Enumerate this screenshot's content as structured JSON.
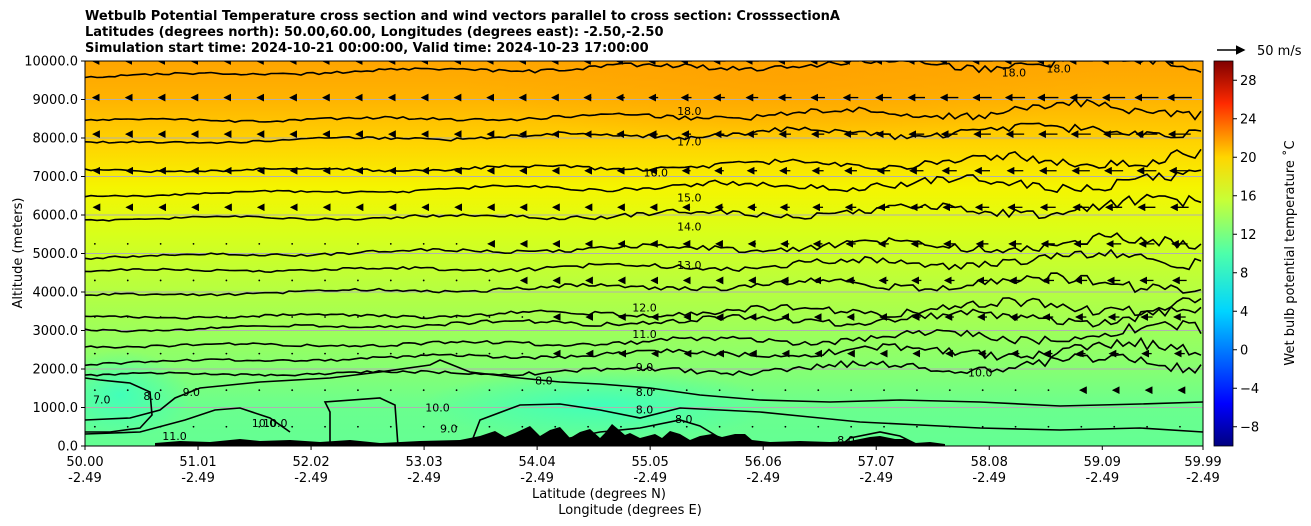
{
  "title_lines": [
    "Wetbulb Potential Temperature cross section and wind vectors parallel to cross section: CrosssectionA",
    "Latitudes (degrees north): 50.00,60.00, Longitudes (degrees east): -2.50,-2.50",
    "Simulation start time: 2024-10-21 00:00:00, Valid time: 2024-10-23 17:00:00"
  ],
  "chart_data": {
    "type": "heatmap",
    "ylabel": "Altitude (meters)",
    "xlabel_line1": "Latitude (degrees N)",
    "xlabel_line2": "Longitude (degrees E)",
    "ylim": [
      0,
      10000
    ],
    "xlim": [
      50.0,
      59.99
    ],
    "y_ticks": [
      {
        "value": 0,
        "label": "0.0"
      },
      {
        "value": 1000,
        "label": "1000.0"
      },
      {
        "value": 2000,
        "label": "2000.0"
      },
      {
        "value": 3000,
        "label": "3000.0"
      },
      {
        "value": 4000,
        "label": "4000.0"
      },
      {
        "value": 5000,
        "label": "5000.0"
      },
      {
        "value": 6000,
        "label": "6000.0"
      },
      {
        "value": 7000,
        "label": "7000.0"
      },
      {
        "value": 8000,
        "label": "8000.0"
      },
      {
        "value": 9000,
        "label": "9000.0"
      },
      {
        "value": 10000,
        "label": "10000.0"
      }
    ],
    "x_ticks": [
      {
        "lat": 50.0,
        "lat_label": "50.00",
        "lon_label": "-2.49"
      },
      {
        "lat": 51.01,
        "lat_label": "51.01",
        "lon_label": "-2.49"
      },
      {
        "lat": 52.02,
        "lat_label": "52.02",
        "lon_label": "-2.49"
      },
      {
        "lat": 53.03,
        "lat_label": "53.03",
        "lon_label": "-2.49"
      },
      {
        "lat": 54.04,
        "lat_label": "54.04",
        "lon_label": "-2.49"
      },
      {
        "lat": 55.05,
        "lat_label": "55.05",
        "lon_label": "-2.49"
      },
      {
        "lat": 56.06,
        "lat_label": "56.06",
        "lon_label": "-2.49"
      },
      {
        "lat": 57.07,
        "lat_label": "57.07",
        "lon_label": "-2.49"
      },
      {
        "lat": 58.08,
        "lat_label": "58.08",
        "lon_label": "-2.49"
      },
      {
        "lat": 59.09,
        "lat_label": "59.09",
        "lon_label": "-2.49"
      },
      {
        "lat": 59.99,
        "lat_label": "59.99",
        "lon_label": "-2.49"
      }
    ],
    "grid": "horizontal",
    "colormap": "jet",
    "colorbar": {
      "label": "Wet bulb potential temperature ˚C",
      "range": [
        -10,
        30
      ],
      "ticks": [
        -8,
        -4,
        0,
        4,
        8,
        12,
        16,
        20,
        24,
        28
      ],
      "tick_labels": [
        "−8",
        "−4",
        "0",
        "4",
        "8",
        "12",
        "16",
        "20",
        "24",
        "28"
      ]
    },
    "quiver_key": {
      "label": "50 m/s",
      "value": 50
    },
    "contour_labels": [
      {
        "text": "18.0",
        "lat": 55.4,
        "alt": 8600
      },
      {
        "text": "17.0",
        "lat": 55.4,
        "alt": 7800
      },
      {
        "text": "16.0",
        "lat": 55.1,
        "alt": 7000
      },
      {
        "text": "15.0",
        "lat": 55.4,
        "alt": 6350
      },
      {
        "text": "14.0",
        "lat": 55.4,
        "alt": 5600
      },
      {
        "text": "13.0",
        "lat": 55.4,
        "alt": 4600
      },
      {
        "text": "12.0",
        "lat": 55.0,
        "alt": 3500
      },
      {
        "text": "11.0",
        "lat": 55.0,
        "alt": 2800
      },
      {
        "text": "10.0",
        "lat": 58.0,
        "alt": 1800
      },
      {
        "text": "9.0",
        "lat": 55.0,
        "alt": 1950
      },
      {
        "text": "9.0",
        "lat": 50.95,
        "alt": 1300
      },
      {
        "text": "9.0",
        "lat": 53.25,
        "alt": 350
      },
      {
        "text": "8.0",
        "lat": 54.1,
        "alt": 1600
      },
      {
        "text": "8.0",
        "lat": 55.0,
        "alt": 1300
      },
      {
        "text": "8.0",
        "lat": 55.0,
        "alt": 850
      },
      {
        "text": "8.0",
        "lat": 50.6,
        "alt": 1200
      },
      {
        "text": "8.0",
        "lat": 55.35,
        "alt": 600
      },
      {
        "text": "8.0",
        "lat": 56.8,
        "alt": 50
      },
      {
        "text": "7.0",
        "lat": 50.15,
        "alt": 1100
      },
      {
        "text": "10.0",
        "lat": 53.15,
        "alt": 900
      },
      {
        "text": "10.0",
        "lat": 51.6,
        "alt": 500
      },
      {
        "text": "10.0",
        "lat": 51.7,
        "alt": 500
      },
      {
        "text": "18.0",
        "lat": 58.3,
        "alt": 9600
      },
      {
        "text": "18.0",
        "lat": 58.7,
        "alt": 9700
      },
      {
        "text": "11.0",
        "lat": 50.8,
        "alt": 150
      }
    ],
    "contour_levels": [
      {
        "level": 18,
        "alt": 9600
      },
      {
        "level": 17.5,
        "alt": 8450
      },
      {
        "level": 17,
        "alt": 7850
      },
      {
        "level": 16,
        "alt": 7150
      },
      {
        "level": 15,
        "alt": 6500
      },
      {
        "level": 14,
        "alt": 5900
      },
      {
        "level": 13.5,
        "alt": 4900
      },
      {
        "level": 13,
        "alt": 4550
      },
      {
        "level": 12.5,
        "alt": 3900
      },
      {
        "level": 12,
        "alt": 3350
      },
      {
        "level": 11.5,
        "alt": 3000
      },
      {
        "level": 11,
        "alt": 2600
      },
      {
        "level": 10.5,
        "alt": 2150
      },
      {
        "level": 9,
        "alt": 1850
      }
    ]
  }
}
